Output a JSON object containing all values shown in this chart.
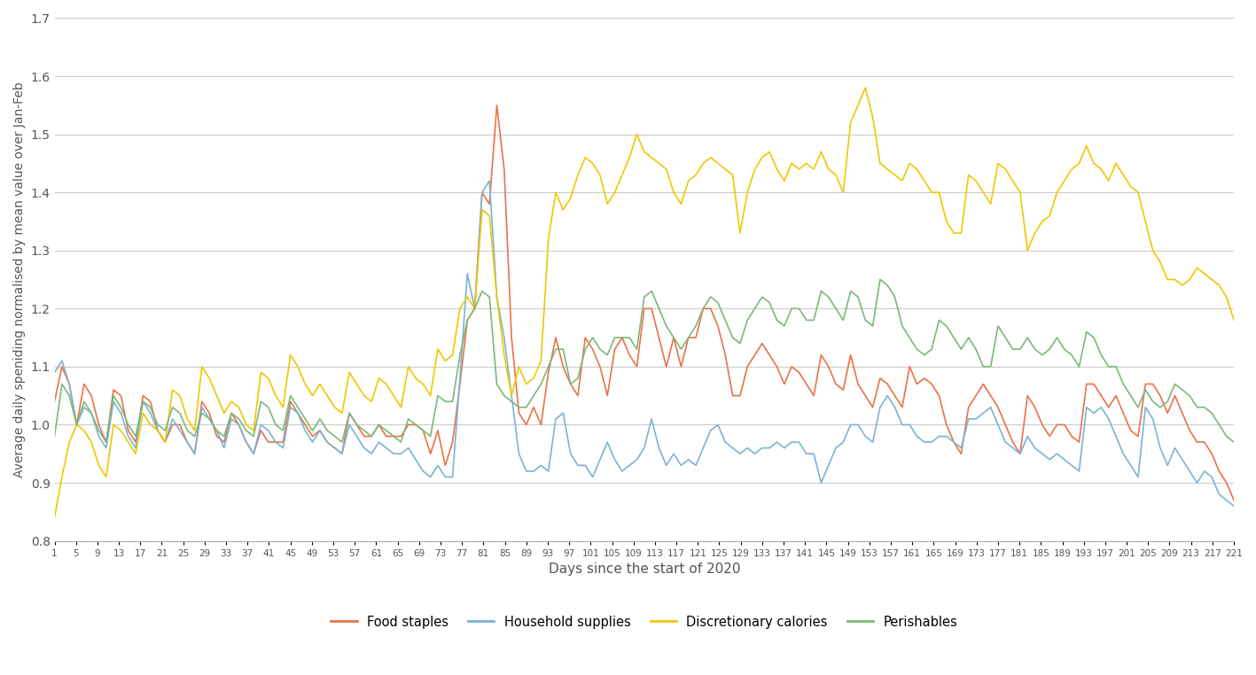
{
  "title": "",
  "ylabel": "Average daily speniding normalised by mean value over Jan-Feb",
  "xlabel": "Days since the start of 2020",
  "ylim": [
    0.8,
    1.7
  ],
  "yticks": [
    0.8,
    0.9,
    1.0,
    1.1,
    1.2,
    1.3,
    1.4,
    1.5,
    1.6,
    1.7
  ],
  "xticks": [
    1,
    5,
    9,
    13,
    17,
    21,
    25,
    29,
    33,
    37,
    41,
    45,
    49,
    53,
    57,
    61,
    65,
    69,
    73,
    77,
    81,
    85,
    89,
    93,
    97,
    101,
    105,
    109,
    113,
    117,
    121,
    125,
    129,
    133,
    137,
    141,
    145,
    149,
    153,
    157,
    161,
    165,
    169,
    173,
    177,
    181,
    185,
    189,
    193,
    197,
    201,
    205,
    209,
    213,
    217,
    221
  ],
  "colors": {
    "food_staples": "#E8734A",
    "household_supplies": "#7BB3D6",
    "discretionary_calories": "#F0C800",
    "perishables": "#7CB87A"
  },
  "legend_labels": [
    "Food staples",
    "Household supplies",
    "Discretionary calories",
    "Perishables"
  ],
  "food_staples": [
    1.04,
    1.1,
    1.07,
    1.0,
    1.07,
    1.05,
    1.0,
    0.97,
    1.06,
    1.05,
    0.99,
    0.97,
    1.05,
    1.04,
    0.99,
    0.97,
    1.0,
    1.0,
    0.97,
    0.95,
    1.04,
    1.02,
    0.98,
    0.97,
    1.02,
    1.0,
    0.97,
    0.95,
    0.99,
    0.97,
    0.97,
    0.97,
    1.04,
    1.02,
    1.0,
    0.98,
    0.99,
    0.97,
    0.96,
    0.95,
    1.02,
    1.0,
    0.98,
    0.98,
    1.0,
    0.98,
    0.98,
    0.98,
    1.0,
    1.0,
    0.99,
    0.95,
    0.99,
    0.93,
    0.97,
    1.07,
    1.18,
    1.2,
    1.4,
    1.38,
    1.55,
    1.44,
    1.15,
    1.02,
    1.0,
    1.03,
    1.0,
    1.09,
    1.15,
    1.1,
    1.07,
    1.05,
    1.15,
    1.13,
    1.1,
    1.05,
    1.13,
    1.15,
    1.12,
    1.1,
    1.2,
    1.2,
    1.15,
    1.1,
    1.15,
    1.1,
    1.15,
    1.15,
    1.2,
    1.2,
    1.17,
    1.12,
    1.05,
    1.05,
    1.1,
    1.12,
    1.14,
    1.12,
    1.1,
    1.07,
    1.1,
    1.09,
    1.07,
    1.05,
    1.12,
    1.1,
    1.07,
    1.06,
    1.12,
    1.07,
    1.05,
    1.03,
    1.08,
    1.07,
    1.05,
    1.03,
    1.1,
    1.07,
    1.08,
    1.07,
    1.05,
    1.0,
    0.97,
    0.95,
    1.03,
    1.05,
    1.07,
    1.05,
    1.03,
    1.0,
    0.97,
    0.95,
    1.05,
    1.03,
    1.0,
    0.98,
    1.0,
    1.0,
    0.98,
    0.97,
    1.07,
    1.07,
    1.05,
    1.03,
    1.05,
    1.02,
    0.99,
    0.98,
    1.07,
    1.07,
    1.05,
    1.02,
    1.05,
    1.02,
    0.99,
    0.97,
    0.97,
    0.95,
    0.92,
    0.9,
    0.87
  ],
  "household_supplies": [
    1.09,
    1.11,
    1.07,
    1.0,
    1.03,
    1.02,
    0.98,
    0.96,
    1.04,
    1.02,
    0.98,
    0.96,
    1.04,
    1.02,
    0.99,
    0.97,
    1.01,
    0.99,
    0.97,
    0.95,
    1.03,
    1.01,
    0.99,
    0.96,
    1.01,
    1.0,
    0.97,
    0.95,
    1.0,
    0.99,
    0.97,
    0.96,
    1.03,
    1.02,
    0.99,
    0.97,
    0.99,
    0.97,
    0.96,
    0.95,
    1.0,
    0.98,
    0.96,
    0.95,
    0.97,
    0.96,
    0.95,
    0.95,
    0.96,
    0.94,
    0.92,
    0.91,
    0.93,
    0.91,
    0.91,
    1.08,
    1.26,
    1.2,
    1.4,
    1.42,
    1.22,
    1.15,
    1.05,
    0.95,
    0.92,
    0.92,
    0.93,
    0.92,
    1.01,
    1.02,
    0.95,
    0.93,
    0.93,
    0.91,
    0.94,
    0.97,
    0.94,
    0.92,
    0.93,
    0.94,
    0.96,
    1.01,
    0.96,
    0.93,
    0.95,
    0.93,
    0.94,
    0.93,
    0.96,
    0.99,
    1.0,
    0.97,
    0.96,
    0.95,
    0.96,
    0.95,
    0.96,
    0.96,
    0.97,
    0.96,
    0.97,
    0.97,
    0.95,
    0.95,
    0.9,
    0.93,
    0.96,
    0.97,
    1.0,
    1.0,
    0.98,
    0.97,
    1.03,
    1.05,
    1.03,
    1.0,
    1.0,
    0.98,
    0.97,
    0.97,
    0.98,
    0.98,
    0.97,
    0.96,
    1.01,
    1.01,
    1.02,
    1.03,
    1.0,
    0.97,
    0.96,
    0.95,
    0.98,
    0.96,
    0.95,
    0.94,
    0.95,
    0.94,
    0.93,
    0.92,
    1.03,
    1.02,
    1.03,
    1.01,
    0.98,
    0.95,
    0.93,
    0.91,
    1.03,
    1.01,
    0.96,
    0.93,
    0.96,
    0.94,
    0.92,
    0.9,
    0.92,
    0.91,
    0.88,
    0.87,
    0.86
  ],
  "discretionary_calories": [
    0.84,
    0.91,
    0.97,
    1.0,
    0.99,
    0.97,
    0.93,
    0.91,
    1.0,
    0.99,
    0.97,
    0.95,
    1.02,
    1.0,
    0.99,
    0.97,
    1.06,
    1.05,
    1.01,
    0.99,
    1.1,
    1.08,
    1.05,
    1.02,
    1.04,
    1.03,
    1.0,
    0.99,
    1.09,
    1.08,
    1.05,
    1.03,
    1.12,
    1.1,
    1.07,
    1.05,
    1.07,
    1.05,
    1.03,
    1.02,
    1.09,
    1.07,
    1.05,
    1.04,
    1.08,
    1.07,
    1.05,
    1.03,
    1.1,
    1.08,
    1.07,
    1.05,
    1.13,
    1.11,
    1.12,
    1.2,
    1.22,
    1.2,
    1.37,
    1.36,
    1.22,
    1.12,
    1.05,
    1.1,
    1.07,
    1.08,
    1.11,
    1.32,
    1.4,
    1.37,
    1.39,
    1.43,
    1.46,
    1.45,
    1.43,
    1.38,
    1.4,
    1.43,
    1.46,
    1.5,
    1.47,
    1.46,
    1.45,
    1.44,
    1.4,
    1.38,
    1.42,
    1.43,
    1.45,
    1.46,
    1.45,
    1.44,
    1.43,
    1.33,
    1.4,
    1.44,
    1.46,
    1.47,
    1.44,
    1.42,
    1.45,
    1.44,
    1.45,
    1.44,
    1.47,
    1.44,
    1.43,
    1.4,
    1.52,
    1.55,
    1.58,
    1.53,
    1.45,
    1.44,
    1.43,
    1.42,
    1.45,
    1.44,
    1.42,
    1.4,
    1.4,
    1.35,
    1.33,
    1.33,
    1.43,
    1.42,
    1.4,
    1.38,
    1.45,
    1.44,
    1.42,
    1.4,
    1.3,
    1.33,
    1.35,
    1.36,
    1.4,
    1.42,
    1.44,
    1.45,
    1.48,
    1.45,
    1.44,
    1.42,
    1.45,
    1.43,
    1.41,
    1.4,
    1.35,
    1.3,
    1.28,
    1.25,
    1.25,
    1.24,
    1.25,
    1.27,
    1.26,
    1.25,
    1.24,
    1.22,
    1.18
  ],
  "perishables": [
    0.98,
    1.07,
    1.05,
    1.0,
    1.04,
    1.02,
    0.99,
    0.97,
    1.05,
    1.03,
    1.0,
    0.98,
    1.04,
    1.03,
    1.0,
    0.99,
    1.03,
    1.02,
    0.99,
    0.98,
    1.02,
    1.01,
    0.99,
    0.98,
    1.02,
    1.01,
    0.99,
    0.98,
    1.04,
    1.03,
    1.0,
    0.99,
    1.05,
    1.03,
    1.01,
    0.99,
    1.01,
    0.99,
    0.98,
    0.97,
    1.02,
    1.0,
    0.99,
    0.98,
    1.0,
    0.99,
    0.98,
    0.97,
    1.01,
    1.0,
    0.99,
    0.98,
    1.05,
    1.04,
    1.04,
    1.12,
    1.18,
    1.2,
    1.23,
    1.22,
    1.07,
    1.05,
    1.04,
    1.03,
    1.03,
    1.05,
    1.07,
    1.1,
    1.13,
    1.13,
    1.07,
    1.08,
    1.13,
    1.15,
    1.13,
    1.12,
    1.15,
    1.15,
    1.15,
    1.13,
    1.22,
    1.23,
    1.2,
    1.17,
    1.15,
    1.13,
    1.15,
    1.17,
    1.2,
    1.22,
    1.21,
    1.18,
    1.15,
    1.14,
    1.18,
    1.2,
    1.22,
    1.21,
    1.18,
    1.17,
    1.2,
    1.2,
    1.18,
    1.18,
    1.23,
    1.22,
    1.2,
    1.18,
    1.23,
    1.22,
    1.18,
    1.17,
    1.25,
    1.24,
    1.22,
    1.17,
    1.15,
    1.13,
    1.12,
    1.13,
    1.18,
    1.17,
    1.15,
    1.13,
    1.15,
    1.13,
    1.1,
    1.1,
    1.17,
    1.15,
    1.13,
    1.13,
    1.15,
    1.13,
    1.12,
    1.13,
    1.15,
    1.13,
    1.12,
    1.1,
    1.16,
    1.15,
    1.12,
    1.1,
    1.1,
    1.07,
    1.05,
    1.03,
    1.06,
    1.04,
    1.03,
    1.04,
    1.07,
    1.06,
    1.05,
    1.03,
    1.03,
    1.02,
    1.0,
    0.98,
    0.97
  ]
}
